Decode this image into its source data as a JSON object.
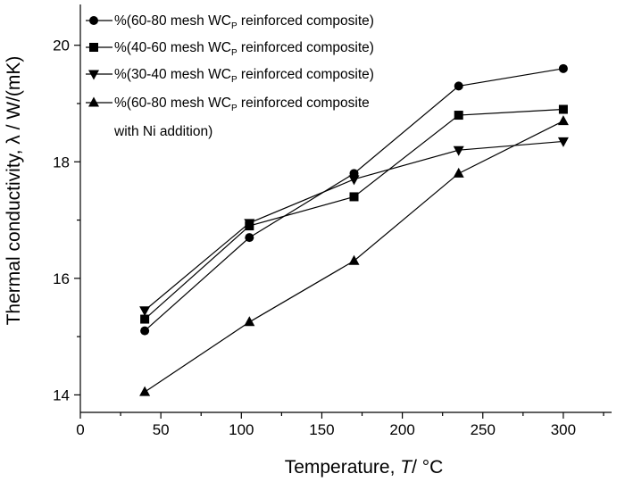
{
  "chart_data": {
    "type": "line",
    "xlabel_main": "Temperature, ",
    "xlabel_symbol": "T",
    "xlabel_unit": "/ °C",
    "ylabel": "Thermal conductivity, λ / W/(mK)",
    "xlim": [
      0,
      330
    ],
    "ylim": [
      13.7,
      20.7
    ],
    "xticks": [
      0,
      50,
      100,
      150,
      200,
      250,
      300
    ],
    "yticks": [
      14,
      16,
      18,
      20
    ],
    "x_minor_ticks": [
      25,
      75,
      125,
      175,
      225,
      275,
      325
    ],
    "y_minor_ticks": [
      15,
      17,
      19
    ],
    "legend_position": "top-left",
    "x": [
      40,
      105,
      170,
      235,
      300
    ],
    "series": [
      {
        "marker": "circle",
        "legend_lines": [
          "%(60-80 mesh WC",
          "P",
          " reinforced composite)"
        ],
        "values": [
          15.1,
          16.7,
          17.8,
          19.3,
          19.6
        ]
      },
      {
        "marker": "square",
        "legend_lines": [
          "%(40-60 mesh WC",
          "P",
          " reinforced composite)"
        ],
        "values": [
          15.3,
          16.9,
          17.4,
          18.8,
          18.9
        ]
      },
      {
        "marker": "triangle-down",
        "legend_lines": [
          "%(30-40 mesh WC",
          "P",
          " reinforced composite)"
        ],
        "values": [
          15.45,
          16.95,
          17.7,
          18.2,
          18.35
        ]
      },
      {
        "marker": "triangle-up",
        "legend_lines": [
          "%(60-80 mesh WC",
          "P",
          " reinforced composite"
        ],
        "legend_line2": "with Ni addition)",
        "values": [
          14.05,
          15.25,
          16.3,
          17.8,
          18.7
        ]
      }
    ]
  }
}
